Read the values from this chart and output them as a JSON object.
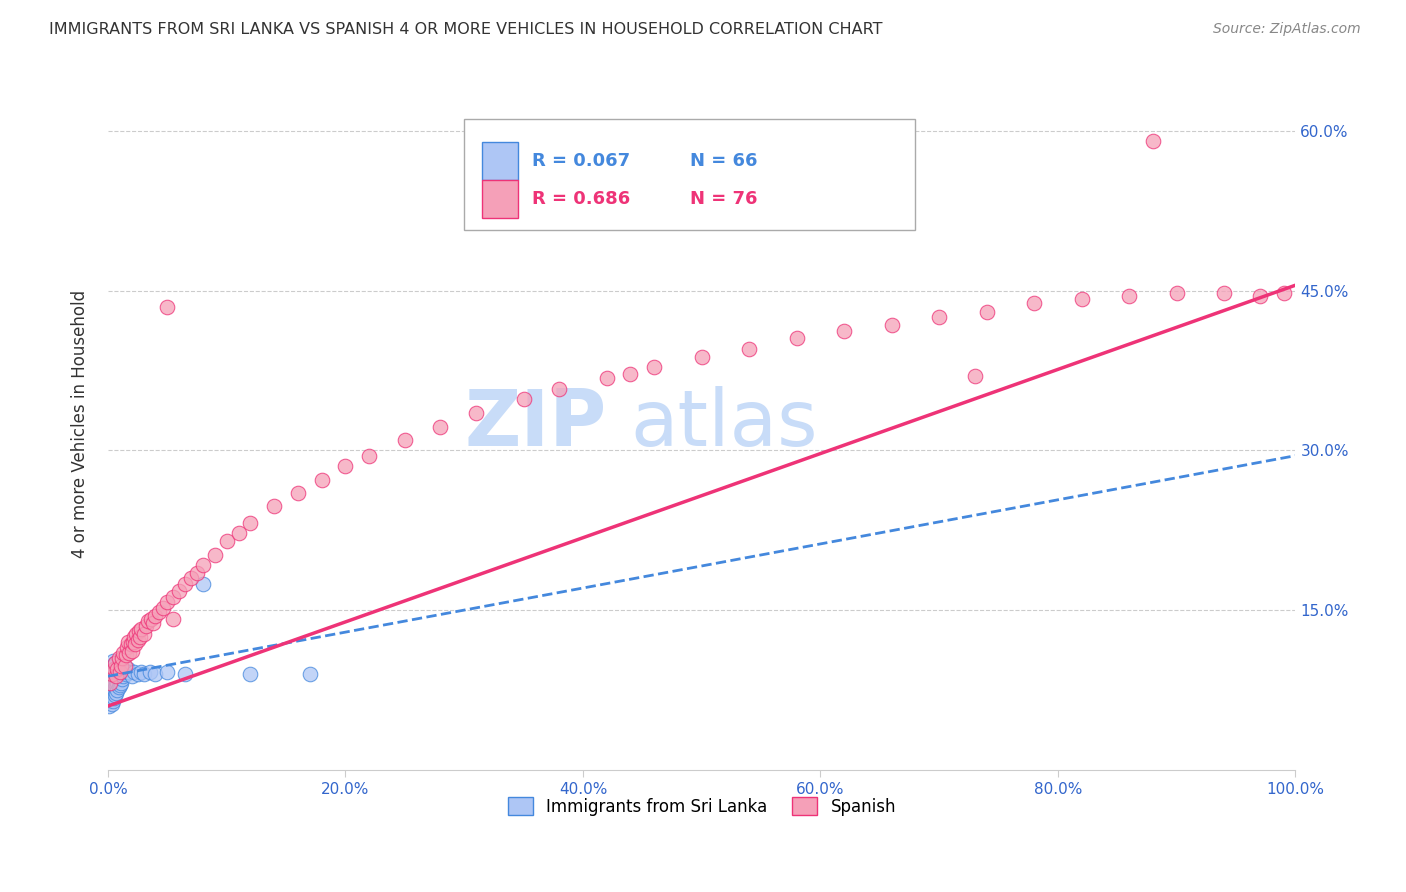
{
  "title": "IMMIGRANTS FROM SRI LANKA VS SPANISH 4 OR MORE VEHICLES IN HOUSEHOLD CORRELATION CHART",
  "source": "Source: ZipAtlas.com",
  "tick_color": "#3366cc",
  "ylabel": "4 or more Vehicles in Household",
  "xmin": 0.0,
  "xmax": 1.0,
  "ymin": 0.0,
  "ymax": 0.65,
  "xticks": [
    0.0,
    0.2,
    0.4,
    0.6,
    0.8,
    1.0
  ],
  "xticklabels": [
    "0.0%",
    "20.0%",
    "40.0%",
    "60.0%",
    "80.0%",
    "100.0%"
  ],
  "yticks": [
    0.15,
    0.3,
    0.45,
    0.6
  ],
  "yticklabels": [
    "15.0%",
    "30.0%",
    "45.0%",
    "60.0%"
  ],
  "legend_r1": "R = 0.067",
  "legend_n1": "N = 66",
  "legend_r2": "R = 0.686",
  "legend_n2": "N = 76",
  "legend_label1": "Immigrants from Sri Lanka",
  "legend_label2": "Spanish",
  "scatter_color1": "#aec6f5",
  "scatter_color2": "#f5a0b8",
  "line_color1": "#4488dd",
  "line_color2": "#ee3377",
  "watermark_zip": "ZIP",
  "watermark_atlas": "atlas",
  "watermark_color": "#c8dcf8",
  "blue_scatter_x": [
    0.001,
    0.001,
    0.001,
    0.001,
    0.002,
    0.002,
    0.002,
    0.002,
    0.002,
    0.003,
    0.003,
    0.003,
    0.003,
    0.003,
    0.003,
    0.004,
    0.004,
    0.004,
    0.004,
    0.004,
    0.004,
    0.005,
    0.005,
    0.005,
    0.005,
    0.005,
    0.006,
    0.006,
    0.006,
    0.006,
    0.006,
    0.007,
    0.007,
    0.007,
    0.007,
    0.008,
    0.008,
    0.008,
    0.009,
    0.009,
    0.009,
    0.01,
    0.01,
    0.01,
    0.011,
    0.011,
    0.012,
    0.012,
    0.013,
    0.014,
    0.015,
    0.016,
    0.017,
    0.018,
    0.02,
    0.022,
    0.025,
    0.028,
    0.03,
    0.035,
    0.04,
    0.05,
    0.065,
    0.08,
    0.12,
    0.17
  ],
  "blue_scatter_y": [
    0.06,
    0.07,
    0.08,
    0.09,
    0.065,
    0.072,
    0.08,
    0.088,
    0.095,
    0.062,
    0.068,
    0.075,
    0.082,
    0.09,
    0.098,
    0.065,
    0.072,
    0.08,
    0.088,
    0.095,
    0.102,
    0.068,
    0.075,
    0.082,
    0.09,
    0.098,
    0.07,
    0.078,
    0.085,
    0.092,
    0.1,
    0.072,
    0.08,
    0.088,
    0.096,
    0.075,
    0.082,
    0.09,
    0.078,
    0.085,
    0.092,
    0.08,
    0.088,
    0.095,
    0.082,
    0.09,
    0.085,
    0.092,
    0.088,
    0.092,
    0.09,
    0.092,
    0.095,
    0.092,
    0.088,
    0.092,
    0.09,
    0.092,
    0.09,
    0.092,
    0.09,
    0.092,
    0.09,
    0.175,
    0.09,
    0.09
  ],
  "pink_scatter_x": [
    0.002,
    0.003,
    0.005,
    0.006,
    0.007,
    0.008,
    0.009,
    0.01,
    0.011,
    0.012,
    0.013,
    0.014,
    0.015,
    0.016,
    0.017,
    0.018,
    0.019,
    0.02,
    0.021,
    0.022,
    0.023,
    0.024,
    0.025,
    0.026,
    0.027,
    0.028,
    0.03,
    0.032,
    0.034,
    0.036,
    0.038,
    0.04,
    0.043,
    0.046,
    0.05,
    0.055,
    0.06,
    0.065,
    0.07,
    0.075,
    0.08,
    0.09,
    0.1,
    0.11,
    0.12,
    0.14,
    0.16,
    0.18,
    0.2,
    0.22,
    0.25,
    0.28,
    0.31,
    0.35,
    0.38,
    0.42,
    0.46,
    0.5,
    0.54,
    0.58,
    0.62,
    0.66,
    0.7,
    0.74,
    0.78,
    0.82,
    0.86,
    0.9,
    0.94,
    0.97,
    0.99,
    0.05,
    0.44,
    0.055,
    0.73,
    0.88
  ],
  "pink_scatter_y": [
    0.082,
    0.09,
    0.095,
    0.1,
    0.088,
    0.095,
    0.105,
    0.092,
    0.098,
    0.105,
    0.11,
    0.098,
    0.108,
    0.115,
    0.12,
    0.11,
    0.118,
    0.112,
    0.12,
    0.125,
    0.118,
    0.128,
    0.122,
    0.13,
    0.125,
    0.132,
    0.128,
    0.135,
    0.14,
    0.142,
    0.138,
    0.145,
    0.148,
    0.152,
    0.158,
    0.162,
    0.168,
    0.175,
    0.18,
    0.185,
    0.192,
    0.202,
    0.215,
    0.222,
    0.232,
    0.248,
    0.26,
    0.272,
    0.285,
    0.295,
    0.31,
    0.322,
    0.335,
    0.348,
    0.358,
    0.368,
    0.378,
    0.388,
    0.395,
    0.405,
    0.412,
    0.418,
    0.425,
    0.43,
    0.438,
    0.442,
    0.445,
    0.448,
    0.448,
    0.445,
    0.448,
    0.435,
    0.372,
    0.142,
    0.37,
    0.59
  ],
  "blue_line_x0": 0.0,
  "blue_line_x1": 1.0,
  "blue_line_y0": 0.088,
  "blue_line_y1": 0.295,
  "pink_line_x0": 0.0,
  "pink_line_x1": 1.0,
  "pink_line_y0": 0.06,
  "pink_line_y1": 0.455
}
